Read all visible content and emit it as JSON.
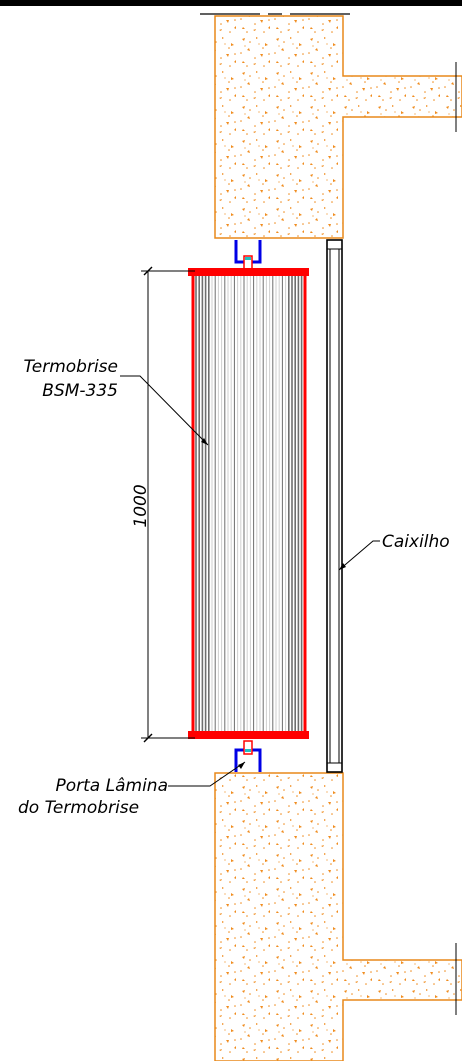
{
  "colors": {
    "background": "#ffffff",
    "top_bar": "#000000",
    "concrete_outline": "#e8891a",
    "concrete_speckle": "#f08c1e",
    "brise_frame": "#ff0000",
    "slat_dark": "#6e6e6e",
    "slat_light": "#cfcfcf",
    "bracket": "#0000e6",
    "connector": "#20c0c0",
    "frame_line": "#000000"
  },
  "labels": {
    "termobrise_line1": "Termobrise",
    "termobrise_line2": "BSM-335",
    "caixilho": "Caixilho",
    "porta_line1": "Porta Lâmina",
    "porta_line2": "do Termobrise"
  },
  "dimension": {
    "value": "1000"
  },
  "icons": [
    "concrete-hatch-pattern",
    "bracket-icon"
  ]
}
